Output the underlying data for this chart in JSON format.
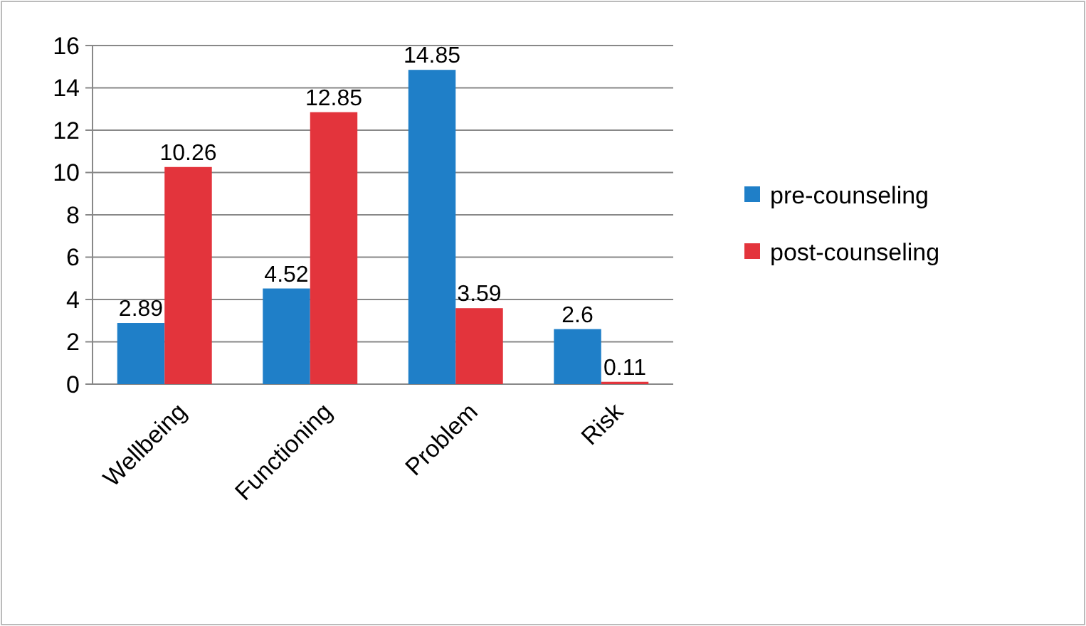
{
  "chart_data": {
    "type": "bar",
    "categories": [
      "Wellbeing",
      "Functioning",
      "Problem",
      "Risk"
    ],
    "series": [
      {
        "name": "pre-counseling",
        "color": "#1f7fc8",
        "values": [
          2.89,
          4.52,
          14.85,
          2.6
        ]
      },
      {
        "name": "post-counseling",
        "color": "#e3343c",
        "values": [
          10.26,
          12.85,
          3.59,
          0.11
        ]
      }
    ],
    "ylim": [
      0,
      16
    ],
    "yticks": [
      0,
      2,
      4,
      6,
      8,
      10,
      12,
      14,
      16
    ],
    "grid": "y",
    "legend": "right",
    "data_labels": true
  }
}
